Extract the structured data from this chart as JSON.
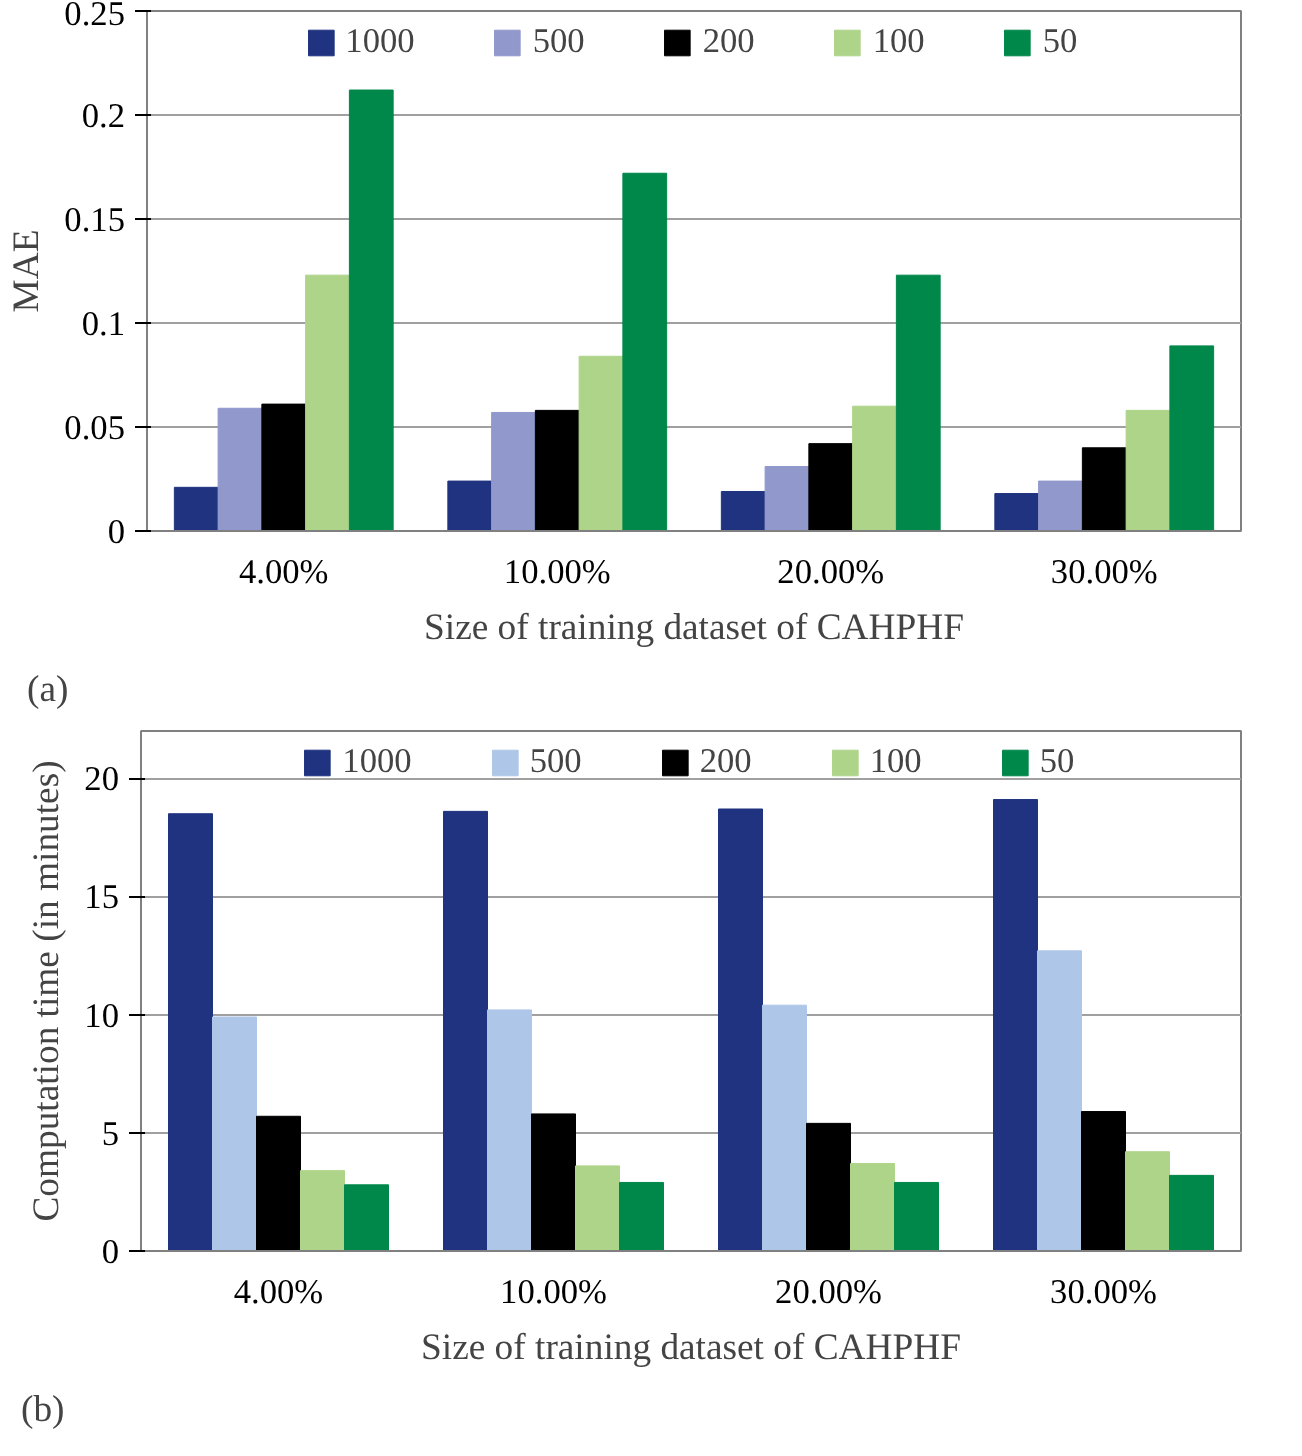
{
  "chart_data": [
    {
      "type": "bar",
      "categories": [
        "4.00%",
        "10.00%",
        "20.00%",
        "30.00%"
      ],
      "xlabel": "Size of training dataset of CAHPHF",
      "ylabel": "MAE",
      "ylim": [
        0,
        0.25
      ],
      "yticks": [
        0,
        0.05,
        0.1,
        0.15,
        0.2,
        0.25
      ],
      "grid": "y",
      "legend": "top",
      "annotations": [
        "(a)"
      ],
      "series": [
        {
          "name": "1000",
          "color": "#1f3380",
          "values": [
            0.021,
            0.024,
            0.019,
            0.018
          ]
        },
        {
          "name": "500",
          "color": "#9198cc",
          "values": [
            0.059,
            0.057,
            0.031,
            0.024
          ]
        },
        {
          "name": "200",
          "color": "#000000",
          "values": [
            0.061,
            0.058,
            0.042,
            0.04
          ]
        },
        {
          "name": "100",
          "color": "#aed48a",
          "values": [
            0.123,
            0.084,
            0.06,
            0.058
          ]
        },
        {
          "name": "50",
          "color": "#00874a",
          "values": [
            0.212,
            0.172,
            0.123,
            0.089
          ]
        }
      ]
    },
    {
      "type": "bar",
      "categories": [
        "4.00%",
        "10.00%",
        "20.00%",
        "30.00%"
      ],
      "xlabel": "Size of training dataset of CAHPHF",
      "ylabel": "Computation time (in minutes)",
      "ylim": [
        0,
        22
      ],
      "yticks": [
        0,
        5,
        10,
        15,
        20
      ],
      "grid": "y",
      "legend": "top",
      "annotations": [
        "(b)"
      ],
      "series": [
        {
          "name": "1000",
          "color": "#1f3380",
          "values": [
            18.5,
            18.6,
            18.7,
            19.1
          ]
        },
        {
          "name": "500",
          "color": "#aec7e8",
          "values": [
            9.9,
            10.2,
            10.4,
            12.7
          ]
        },
        {
          "name": "200",
          "color": "#000000",
          "values": [
            5.7,
            5.8,
            5.4,
            5.9
          ]
        },
        {
          "name": "100",
          "color": "#aed48a",
          "values": [
            3.4,
            3.6,
            3.7,
            4.2
          ]
        },
        {
          "name": "50",
          "color": "#00874a",
          "values": [
            2.8,
            2.9,
            2.9,
            3.2
          ]
        }
      ]
    }
  ]
}
